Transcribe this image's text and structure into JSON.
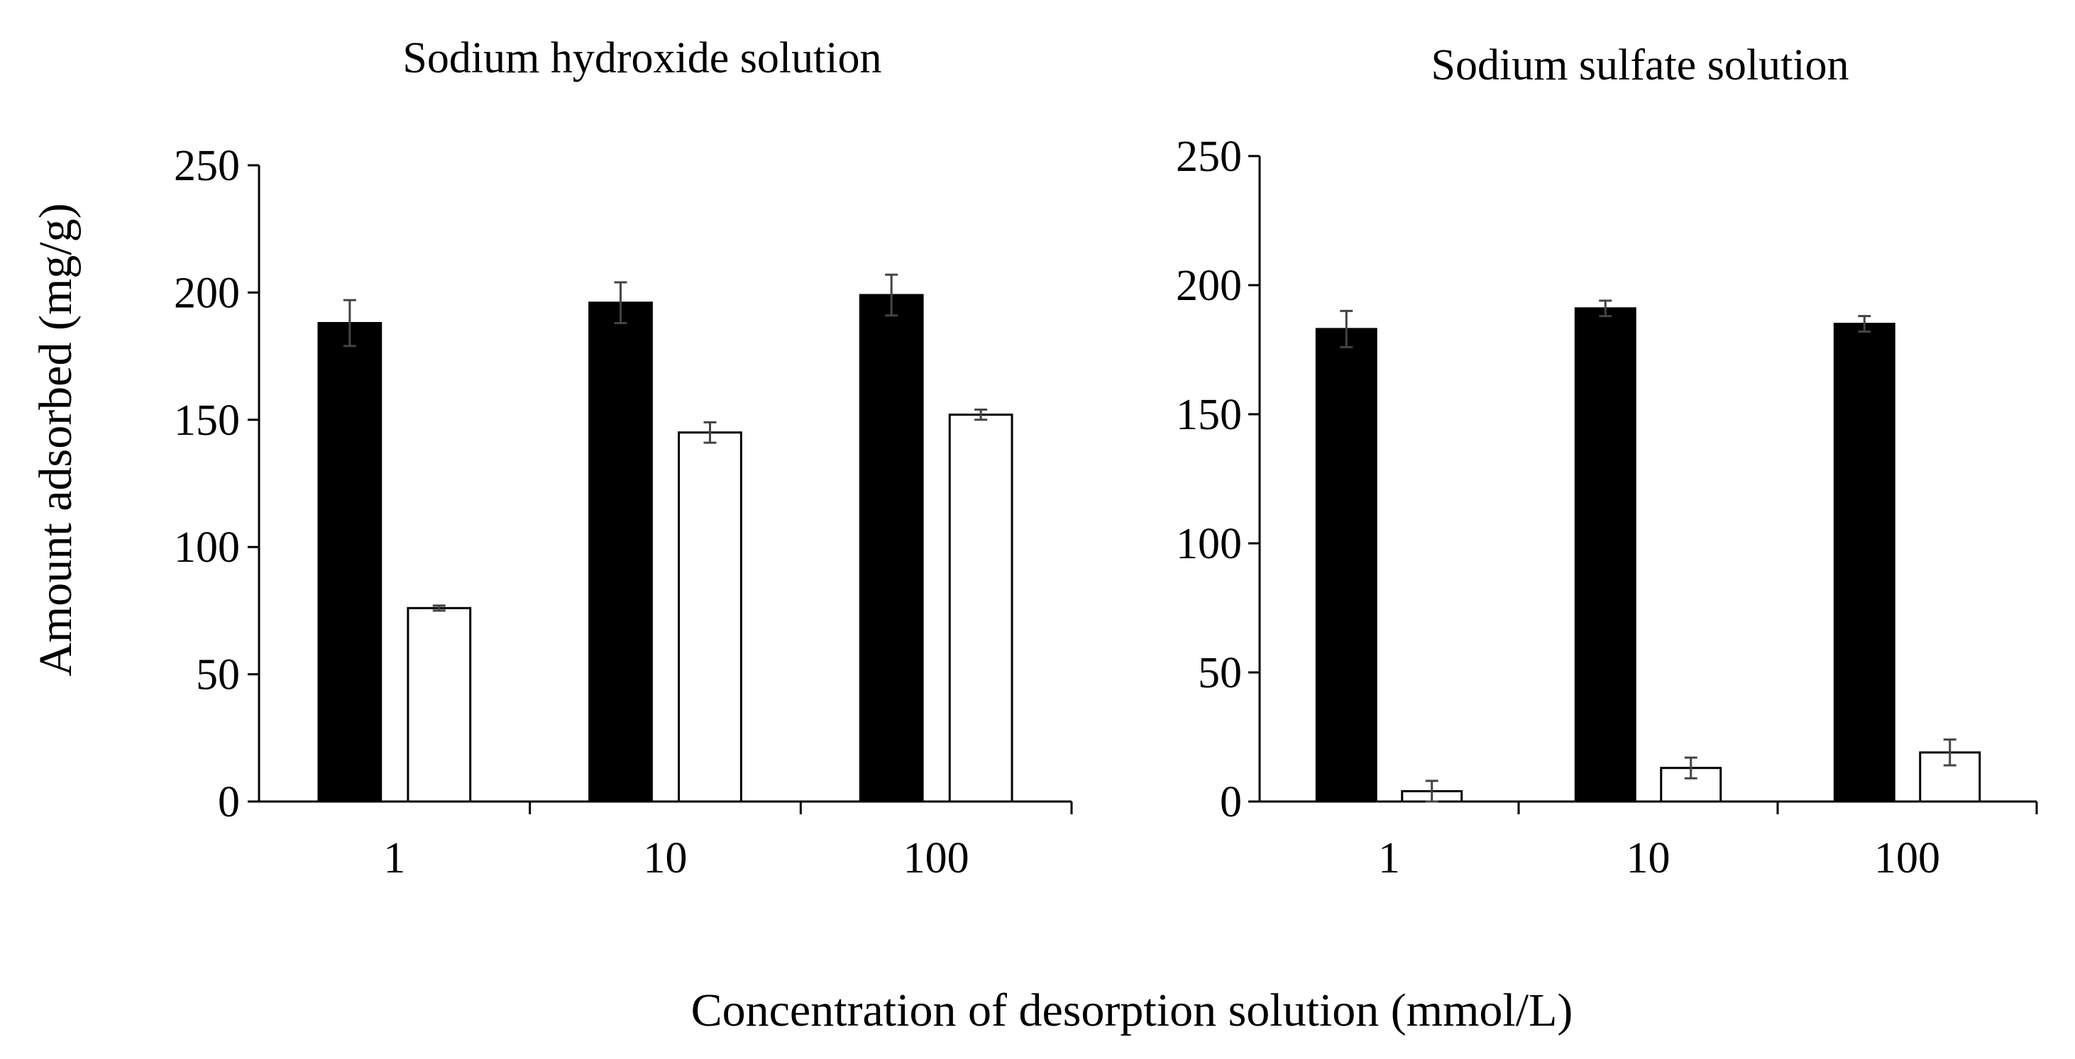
{
  "figure": {
    "shared_ylabel": "Amount adsorbed (mg/g)",
    "shared_xlabel": "Concentration of desorption solution (mmol/L)",
    "colors": {
      "series_filled": "#000000",
      "series_open": "#ffffff",
      "axis": "#000000",
      "error_bar": "#444444"
    }
  },
  "chart_data": [
    {
      "type": "bar",
      "title": "Sodium hydroxide solution",
      "xlabel": "Concentration of desorption solution (mmol/L)",
      "ylabel": "Amount adsorbed (mg/g)",
      "categories": [
        "1",
        "10",
        "100"
      ],
      "ylim": [
        0,
        250
      ],
      "yticks": [
        0,
        50,
        100,
        150,
        200,
        250
      ],
      "grid": false,
      "legend": "none",
      "series": [
        {
          "fill": "#000000",
          "values": [
            188,
            196,
            199
          ],
          "errors": [
            9,
            8,
            8
          ]
        },
        {
          "fill": "#ffffff",
          "values": [
            76,
            145,
            152
          ],
          "errors": [
            1,
            4,
            2
          ]
        }
      ]
    },
    {
      "type": "bar",
      "title": "Sodium sulfate solution",
      "xlabel": "Concentration of desorption solution (mmol/L)",
      "ylabel": "Amount adsorbed (mg/g)",
      "categories": [
        "1",
        "10",
        "100"
      ],
      "ylim": [
        0,
        250
      ],
      "yticks": [
        0,
        50,
        100,
        150,
        200,
        250
      ],
      "grid": false,
      "legend": "none",
      "series": [
        {
          "fill": "#000000",
          "values": [
            183,
            191,
            185
          ],
          "errors": [
            7,
            3,
            3
          ]
        },
        {
          "fill": "#ffffff",
          "values": [
            4,
            13,
            19
          ],
          "errors": [
            4,
            4,
            5
          ]
        }
      ]
    }
  ]
}
